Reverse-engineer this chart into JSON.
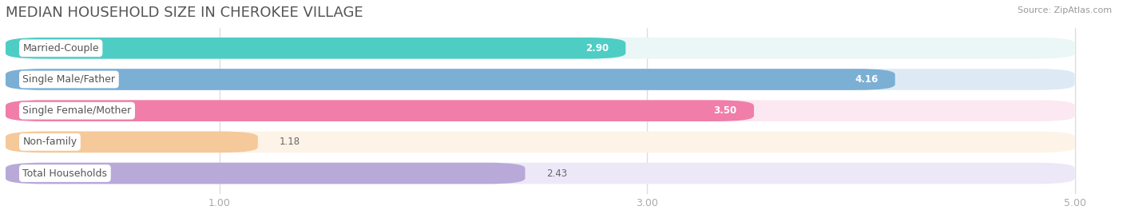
{
  "title": "MEDIAN HOUSEHOLD SIZE IN CHEROKEE VILLAGE",
  "source": "Source: ZipAtlas.com",
  "categories": [
    "Married-Couple",
    "Single Male/Father",
    "Single Female/Mother",
    "Non-family",
    "Total Households"
  ],
  "values": [
    2.9,
    4.16,
    3.5,
    1.18,
    2.43
  ],
  "bar_colors": [
    "#4ecdc4",
    "#7bafd4",
    "#f07ea9",
    "#f5c99a",
    "#b8a9d9"
  ],
  "bar_bg_colors": [
    "#eaf7f6",
    "#ddeaf5",
    "#fce8f0",
    "#fdf3e7",
    "#ede8f7"
  ],
  "label_bg": "#ffffff",
  "xlim_min": 0,
  "xlim_max": 5.2,
  "xaxis_min": 0,
  "xaxis_max": 5.0,
  "xticks": [
    1.0,
    3.0,
    5.0
  ],
  "figsize": [
    14.06,
    2.68
  ],
  "dpi": 100,
  "value_fontsize": 8.5,
  "label_fontsize": 9,
  "title_fontsize": 13,
  "bar_height": 0.68,
  "bar_gap": 1.0,
  "background_color": "#ffffff",
  "text_color": "#555555",
  "tick_color": "#aaaaaa",
  "grid_color": "#dddddd",
  "value_color_inside": "#ffffff",
  "value_color_outside": "#666666"
}
